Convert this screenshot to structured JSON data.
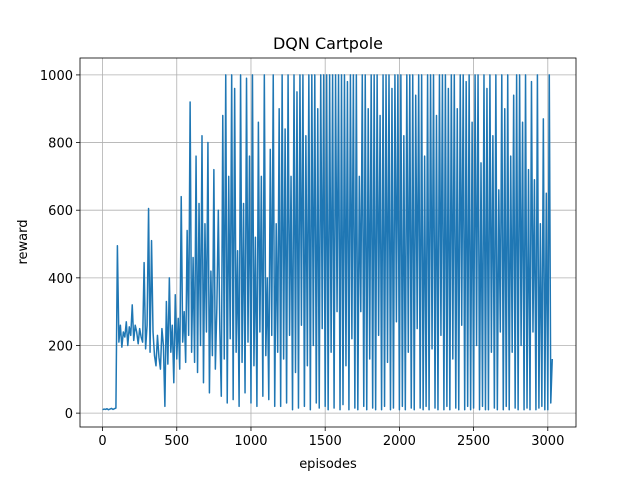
{
  "chart_data": {
    "type": "line",
    "title": "DQN Cartpole",
    "xlabel": "episodes",
    "ylabel": "reward",
    "color": "#1f77b4",
    "grid": true,
    "xlim": [
      -152,
      3190
    ],
    "ylim": [
      -41,
      1050
    ],
    "xticks": [
      0,
      500,
      1000,
      1500,
      2000,
      2500,
      3000
    ],
    "yticks": [
      0,
      200,
      400,
      600,
      800,
      1000
    ],
    "x": [
      0,
      10,
      20,
      30,
      40,
      50,
      60,
      70,
      80,
      90,
      100,
      110,
      120,
      130,
      140,
      150,
      160,
      170,
      180,
      190,
      200,
      210,
      220,
      230,
      240,
      250,
      260,
      270,
      280,
      290,
      300,
      310,
      320,
      330,
      340,
      350,
      360,
      370,
      380,
      390,
      400,
      410,
      420,
      430,
      440,
      450,
      460,
      470,
      480,
      490,
      500,
      510,
      520,
      530,
      540,
      550,
      560,
      570,
      580,
      590,
      600,
      610,
      620,
      630,
      640,
      650,
      660,
      670,
      680,
      690,
      700,
      710,
      720,
      730,
      740,
      750,
      760,
      770,
      780,
      790,
      800,
      810,
      820,
      830,
      840,
      850,
      860,
      870,
      880,
      890,
      900,
      910,
      920,
      930,
      940,
      950,
      960,
      970,
      980,
      990,
      1000,
      1010,
      1020,
      1030,
      1040,
      1050,
      1060,
      1070,
      1080,
      1090,
      1100,
      1110,
      1120,
      1130,
      1140,
      1150,
      1160,
      1170,
      1180,
      1190,
      1200,
      1210,
      1220,
      1230,
      1240,
      1250,
      1260,
      1270,
      1280,
      1290,
      1300,
      1310,
      1320,
      1330,
      1340,
      1350,
      1360,
      1370,
      1380,
      1390,
      1400,
      1410,
      1420,
      1430,
      1440,
      1450,
      1460,
      1470,
      1480,
      1490,
      1500,
      1510,
      1520,
      1530,
      1540,
      1550,
      1560,
      1570,
      1580,
      1590,
      1600,
      1610,
      1620,
      1630,
      1640,
      1650,
      1660,
      1670,
      1680,
      1690,
      1700,
      1710,
      1720,
      1730,
      1740,
      1750,
      1760,
      1770,
      1780,
      1790,
      1800,
      1810,
      1820,
      1830,
      1840,
      1850,
      1860,
      1870,
      1880,
      1890,
      1900,
      1910,
      1920,
      1930,
      1940,
      1950,
      1960,
      1970,
      1980,
      1990,
      2000,
      2010,
      2020,
      2030,
      2040,
      2050,
      2060,
      2070,
      2080,
      2090,
      2100,
      2110,
      2120,
      2130,
      2140,
      2150,
      2160,
      2170,
      2180,
      2190,
      2200,
      2210,
      2220,
      2230,
      2240,
      2250,
      2260,
      2270,
      2280,
      2290,
      2300,
      2310,
      2320,
      2330,
      2340,
      2350,
      2360,
      2370,
      2380,
      2390,
      2400,
      2410,
      2420,
      2430,
      2440,
      2450,
      2460,
      2470,
      2480,
      2490,
      2500,
      2510,
      2520,
      2530,
      2540,
      2550,
      2560,
      2570,
      2580,
      2590,
      2600,
      2610,
      2620,
      2630,
      2640,
      2650,
      2660,
      2670,
      2680,
      2690,
      2700,
      2710,
      2720,
      2730,
      2740,
      2750,
      2760,
      2770,
      2780,
      2790,
      2800,
      2810,
      2820,
      2830,
      2840,
      2850,
      2860,
      2870,
      2880,
      2890,
      2900,
      2910,
      2920,
      2930,
      2940,
      2950,
      2960,
      2970,
      2980,
      2990,
      3000,
      3010,
      3020,
      3030
    ],
    "values": [
      10,
      12,
      11,
      13,
      10,
      12,
      14,
      11,
      13,
      15,
      495,
      210,
      260,
      195,
      240,
      225,
      270,
      200,
      255,
      230,
      320,
      215,
      260,
      240,
      205,
      250,
      225,
      210,
      445,
      190,
      260,
      605,
      180,
      510,
      240,
      170,
      140,
      230,
      165,
      130,
      250,
      200,
      20,
      330,
      145,
      400,
      180,
      260,
      90,
      350,
      160,
      280,
      130,
      640,
      210,
      300,
      150,
      540,
      230,
      920,
      180,
      460,
      150,
      760,
      120,
      620,
      200,
      820,
      90,
      560,
      240,
      800,
      60,
      420,
      170,
      720,
      130,
      310,
      600,
      250,
      50,
      880,
      160,
      1000,
      30,
      700,
      220,
      1000,
      40,
      960,
      180,
      480,
      20,
      1000,
      150,
      620,
      60,
      990,
      210,
      760,
      30,
      1000,
      140,
      520,
      20,
      860,
      240,
      700,
      50,
      1000,
      170,
      400,
      40,
      780,
      230,
      1000,
      20,
      560,
      180,
      900,
      20,
      1000,
      160,
      840,
      30,
      1000,
      230,
      700,
      10,
      1000,
      120,
      950,
      15,
      1000,
      260,
      1000,
      20,
      820,
      140,
      1000,
      10,
      1000,
      200,
      1000,
      30,
      900,
      15,
      1000,
      250,
      1000,
      20,
      1000,
      10,
      1000,
      180,
      1000,
      15,
      1000,
      300,
      1000,
      10,
      1000,
      25,
      1000,
      140,
      980,
      10,
      1000,
      220,
      1000,
      15,
      1000,
      10,
      700,
      300,
      1000,
      20,
      1000,
      10,
      900,
      160,
      1000,
      15,
      1000,
      10,
      1000,
      230,
      880,
      10,
      1000,
      20,
      1000,
      150,
      1000,
      10,
      960,
      15,
      1000,
      270,
      1000,
      10,
      1000,
      20,
      820,
      10,
      1000,
      180,
      1000,
      15,
      1000,
      10,
      940,
      250,
      1000,
      15,
      1000,
      10,
      760,
      20,
      1000,
      10,
      1000,
      190,
      1000,
      15,
      880,
      10,
      1000,
      230,
      1000,
      10,
      1000,
      20,
      960,
      10,
      1000,
      160,
      1000,
      15,
      900,
      10,
      1000,
      260,
      1000,
      10,
      980,
      20,
      1000,
      10,
      860,
      15,
      1000,
      200,
      1000,
      10,
      740,
      20,
      1000,
      10,
      960,
      10,
      1000,
      180,
      820,
      15,
      1000,
      10,
      660,
      240,
      1000,
      10,
      900,
      20,
      1000,
      10,
      760,
      180,
      940,
      15,
      1000,
      10,
      1000,
      200,
      860,
      10,
      1000,
      15,
      720,
      10,
      980,
      240,
      690,
      10,
      1000,
      15,
      560,
      20,
      870,
      10,
      650,
      10,
      1000,
      30,
      160
    ]
  }
}
